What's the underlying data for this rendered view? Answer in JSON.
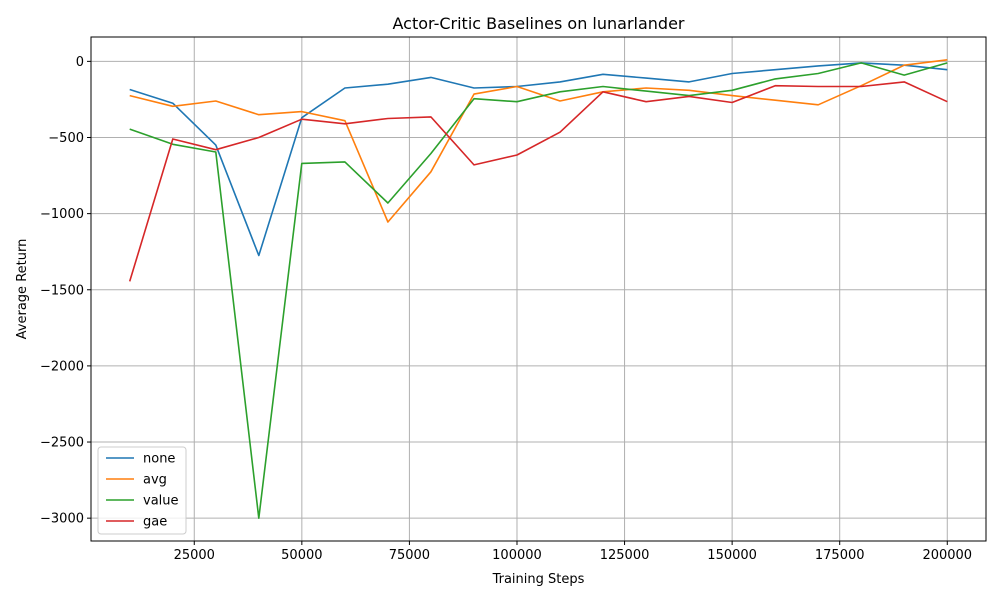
{
  "chart_data": {
    "type": "line",
    "title": "Actor-Critic Baselines on lunarlander",
    "xlabel": "Training Steps",
    "ylabel": "Average Return",
    "xlim": [
      1000,
      209000
    ],
    "ylim": [
      -3150,
      160
    ],
    "xticks": [
      25000,
      50000,
      75000,
      100000,
      125000,
      150000,
      175000,
      200000
    ],
    "yticks": [
      -3000,
      -2500,
      -2000,
      -1500,
      -1000,
      -500,
      0
    ],
    "grid": true,
    "legend_position": "lower-left",
    "x": [
      10000,
      20000,
      30000,
      40000,
      50000,
      60000,
      70000,
      80000,
      90000,
      100000,
      110000,
      120000,
      130000,
      140000,
      150000,
      160000,
      170000,
      180000,
      190000,
      200000
    ],
    "series": [
      {
        "name": "none",
        "color": "#1f77b4",
        "values": [
          -185,
          -275,
          -550,
          -1275,
          -370,
          -175,
          -150,
          -105,
          -175,
          -165,
          -135,
          -85,
          -110,
          -135,
          -80,
          -55,
          -30,
          -10,
          -25,
          -55
        ]
      },
      {
        "name": "avg",
        "color": "#ff7f0e",
        "values": [
          -225,
          -295,
          -260,
          -350,
          -330,
          -390,
          -1055,
          -725,
          -215,
          -165,
          -260,
          -200,
          -175,
          -190,
          -225,
          -255,
          -285,
          -160,
          -25,
          10
        ]
      },
      {
        "name": "value",
        "color": "#2ca02c",
        "values": [
          -445,
          -545,
          -595,
          -3000,
          -670,
          -660,
          -930,
          -605,
          -245,
          -265,
          -200,
          -165,
          -195,
          -225,
          -190,
          -115,
          -80,
          -10,
          -90,
          -10
        ]
      },
      {
        "name": "gae",
        "color": "#d62728",
        "values": [
          -1445,
          -510,
          -580,
          -500,
          -380,
          -410,
          -375,
          -365,
          -680,
          -615,
          -465,
          -200,
          -265,
          -230,
          -270,
          -160,
          -165,
          -165,
          -135,
          -265
        ]
      }
    ]
  }
}
